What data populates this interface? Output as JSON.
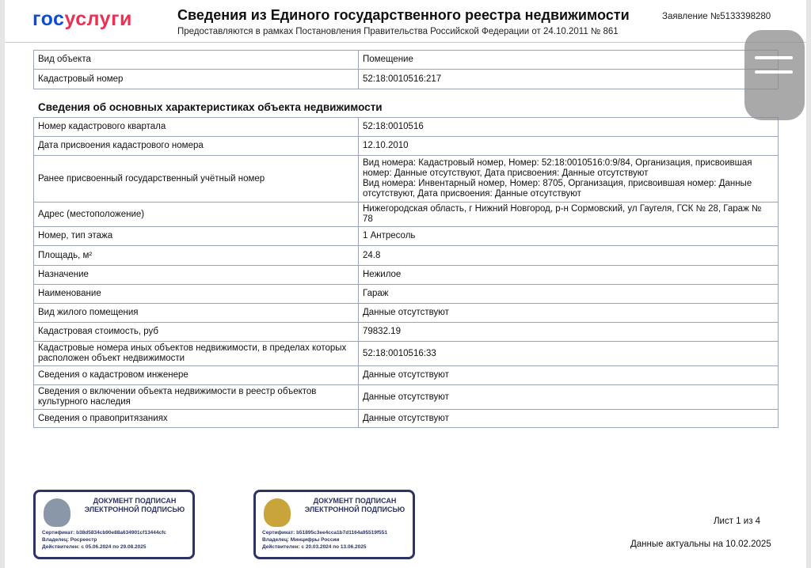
{
  "header": {
    "logo_part1": "гос",
    "logo_part2": "услуги",
    "title": "Сведения из Единого государственного реестра недвижимости",
    "subtitle": "Предоставляются в рамках Постановления Правительства Российской Федерации от 24.10.2011 № 861",
    "request": "Заявление №5133398280"
  },
  "object_table": [
    {
      "label": "Вид объекта",
      "value": "Помещение"
    },
    {
      "label": "Кадастровый номер",
      "value": "52:18:0010516:217"
    }
  ],
  "section_title": "Сведения об основных характеристиках объекта недвижимости",
  "main_table": [
    {
      "label": "Номер кадастрового квартала",
      "value": "52:18:0010516"
    },
    {
      "label": "Дата присвоения кадастрового номера",
      "value": "12.10.2010"
    },
    {
      "label": "Ранее присвоенный государственный учётный номер",
      "value": "Вид номера: Кадастровый номер, Номер: 52:18:0010516:0:9/84, Организация, присвоившая номер: Данные отсутствуют, Дата присвоения: Данные отсутствуют\nВид номера: Инвентарный номер, Номер: 8705, Организация, присвоившая номер: Данные отсутствуют, Дата присвоения: Данные отсутствуют"
    },
    {
      "label": "Адрес (местоположение)",
      "value": "Нижегородская область, г Нижний Новгород, р-н Сормовский, ул Гаугеля, ГСК № 28, Гараж № 78"
    },
    {
      "label": "Номер, тип этажа",
      "value": "1 Антресоль"
    },
    {
      "label": "Площадь, м²",
      "value": "24.8"
    },
    {
      "label": "Назначение",
      "value": "Нежилое"
    },
    {
      "label": "Наименование",
      "value": "Гараж"
    },
    {
      "label": "Вид жилого помещения",
      "value": "Данные отсутствуют"
    },
    {
      "label": "Кадастровая стоимость, руб",
      "value": "79832.19"
    },
    {
      "label": "Кадастровые номера иных объектов недвижимости, в пределах которых расположен объект недвижимости",
      "value": "52:18:0010516:33"
    },
    {
      "label": "Сведения о кадастровом инженере",
      "value": "Данные отсутствуют"
    },
    {
      "label": "Сведения о включении объекта недвижимости в реестр объектов культурного наследия",
      "value": "Данные отсутствуют"
    },
    {
      "label": "Сведения о правопритязаниях",
      "value": "Данные отсутствуют"
    }
  ],
  "stamps": [
    {
      "title": "ДОКУМЕНТ ПОДПИСАН ЭЛЕКТРОННОЙ ПОДПИСЬЮ",
      "certificate": "Сертификат: b38d5834cb90e88a634901cf13444cfc",
      "owner": "Владелец: Росреестр",
      "valid": "Действителен: с 05.06.2024 по 29.08.2025",
      "emblem": "rosreestr-emblem",
      "emblem_color": "#8a97a8"
    },
    {
      "title": "ДОКУМЕНТ ПОДПИСАН ЭЛЕКТРОННОЙ ПОДПИСЬЮ",
      "certificate": "Сертификат: b51895c3ee4cca1b7d1164a95519f551",
      "owner": "Владелец: Минцифры России",
      "valid": "Действителен: с 20.03.2024 по 13.06.2025",
      "emblem": "russian-coat-of-arms",
      "emblem_color": "#c9a43a"
    }
  ],
  "footer": {
    "sheet": "Лист 1 из 4",
    "actual": "Данные актуальны на 10.02.2025"
  },
  "menu_icon": "hamburger-menu-icon"
}
